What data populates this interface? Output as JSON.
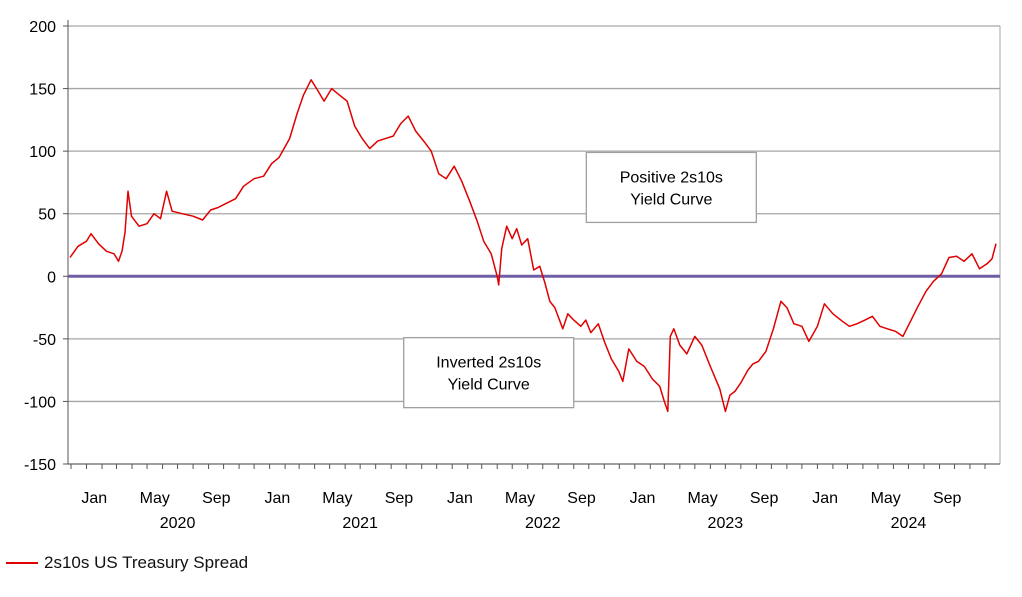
{
  "chart_data": {
    "type": "line",
    "title": "",
    "xlabel": "",
    "ylabel": "",
    "ylim": [
      -150,
      200
    ],
    "yticks": [
      200,
      150,
      100,
      50,
      0,
      -50,
      -100,
      -150
    ],
    "xlim": [
      "2019-11-25",
      "2024-12-31"
    ],
    "month_ticks": [
      {
        "label": "Jan",
        "date": "2020-01-01"
      },
      {
        "label": "May",
        "date": "2020-05-01"
      },
      {
        "label": "Sep",
        "date": "2020-09-01"
      },
      {
        "label": "Jan",
        "date": "2021-01-01"
      },
      {
        "label": "May",
        "date": "2021-05-01"
      },
      {
        "label": "Sep",
        "date": "2021-09-01"
      },
      {
        "label": "Jan",
        "date": "2022-01-01"
      },
      {
        "label": "May",
        "date": "2022-05-01"
      },
      {
        "label": "Sep",
        "date": "2022-09-01"
      },
      {
        "label": "Jan",
        "date": "2023-01-01"
      },
      {
        "label": "May",
        "date": "2023-05-01"
      },
      {
        "label": "Sep",
        "date": "2023-09-01"
      },
      {
        "label": "Jan",
        "date": "2024-01-01"
      },
      {
        "label": "May",
        "date": "2024-05-01"
      },
      {
        "label": "Sep",
        "date": "2024-09-01"
      }
    ],
    "year_labels": [
      {
        "label": "2020",
        "date": "2020-07-01"
      },
      {
        "label": "2021",
        "date": "2021-07-01"
      },
      {
        "label": "2022",
        "date": "2022-07-01"
      },
      {
        "label": "2023",
        "date": "2023-07-01"
      },
      {
        "label": "2024",
        "date": "2024-07-01"
      }
    ],
    "grid": true,
    "legend_position": "bottom-left",
    "series": [
      {
        "name": "2s10s US Treasury Spread",
        "color": "#e00000",
        "points": [
          [
            "2019-11-29",
            15
          ],
          [
            "2019-12-15",
            24
          ],
          [
            "2020-01-01",
            28
          ],
          [
            "2020-01-10",
            34
          ],
          [
            "2020-01-25",
            26
          ],
          [
            "2020-02-10",
            20
          ],
          [
            "2020-02-25",
            18
          ],
          [
            "2020-03-05",
            12
          ],
          [
            "2020-03-12",
            20
          ],
          [
            "2020-03-18",
            35
          ],
          [
            "2020-03-24",
            68
          ],
          [
            "2020-03-31",
            48
          ],
          [
            "2020-04-15",
            40
          ],
          [
            "2020-05-01",
            42
          ],
          [
            "2020-05-15",
            50
          ],
          [
            "2020-05-28",
            46
          ],
          [
            "2020-06-09",
            68
          ],
          [
            "2020-06-20",
            52
          ],
          [
            "2020-07-10",
            50
          ],
          [
            "2020-08-01",
            48
          ],
          [
            "2020-08-20",
            45
          ],
          [
            "2020-09-05",
            53
          ],
          [
            "2020-09-20",
            55
          ],
          [
            "2020-10-05",
            58
          ],
          [
            "2020-10-25",
            62
          ],
          [
            "2020-11-10",
            72
          ],
          [
            "2020-12-01",
            78
          ],
          [
            "2020-12-20",
            80
          ],
          [
            "2021-01-05",
            90
          ],
          [
            "2021-01-20",
            95
          ],
          [
            "2021-02-10",
            110
          ],
          [
            "2021-02-25",
            130
          ],
          [
            "2021-03-10",
            145
          ],
          [
            "2021-03-25",
            157
          ],
          [
            "2021-04-05",
            150
          ],
          [
            "2021-04-20",
            140
          ],
          [
            "2021-05-05",
            150
          ],
          [
            "2021-05-20",
            145
          ],
          [
            "2021-06-05",
            140
          ],
          [
            "2021-06-20",
            120
          ],
          [
            "2021-07-05",
            110
          ],
          [
            "2021-07-20",
            102
          ],
          [
            "2021-08-05",
            108
          ],
          [
            "2021-08-20",
            110
          ],
          [
            "2021-09-05",
            112
          ],
          [
            "2021-09-20",
            122
          ],
          [
            "2021-10-05",
            128
          ],
          [
            "2021-10-20",
            116
          ],
          [
            "2021-11-05",
            108
          ],
          [
            "2021-11-20",
            100
          ],
          [
            "2021-12-05",
            82
          ],
          [
            "2021-12-20",
            78
          ],
          [
            "2022-01-05",
            88
          ],
          [
            "2022-01-20",
            76
          ],
          [
            "2022-02-05",
            60
          ],
          [
            "2022-02-20",
            44
          ],
          [
            "2022-03-05",
            28
          ],
          [
            "2022-03-20",
            18
          ],
          [
            "2022-04-01",
            0
          ],
          [
            "2022-04-04",
            -7
          ],
          [
            "2022-04-10",
            22
          ],
          [
            "2022-04-20",
            40
          ],
          [
            "2022-05-01",
            30
          ],
          [
            "2022-05-10",
            38
          ],
          [
            "2022-05-20",
            25
          ],
          [
            "2022-06-01",
            30
          ],
          [
            "2022-06-13",
            5
          ],
          [
            "2022-06-25",
            8
          ],
          [
            "2022-07-05",
            -5
          ],
          [
            "2022-07-15",
            -20
          ],
          [
            "2022-07-25",
            -25
          ],
          [
            "2022-08-10",
            -42
          ],
          [
            "2022-08-20",
            -30
          ],
          [
            "2022-09-01",
            -35
          ],
          [
            "2022-09-15",
            -40
          ],
          [
            "2022-09-25",
            -35
          ],
          [
            "2022-10-05",
            -45
          ],
          [
            "2022-10-20",
            -38
          ],
          [
            "2022-11-01",
            -52
          ],
          [
            "2022-11-15",
            -66
          ],
          [
            "2022-11-30",
            -76
          ],
          [
            "2022-12-08",
            -84
          ],
          [
            "2022-12-20",
            -58
          ],
          [
            "2023-01-05",
            -68
          ],
          [
            "2023-01-20",
            -72
          ],
          [
            "2023-02-05",
            -82
          ],
          [
            "2023-02-20",
            -88
          ],
          [
            "2023-03-01",
            -100
          ],
          [
            "2023-03-08",
            -108
          ],
          [
            "2023-03-13",
            -48
          ],
          [
            "2023-03-20",
            -42
          ],
          [
            "2023-04-01",
            -55
          ],
          [
            "2023-04-15",
            -62
          ],
          [
            "2023-05-01",
            -48
          ],
          [
            "2023-05-15",
            -55
          ],
          [
            "2023-06-01",
            -72
          ],
          [
            "2023-06-20",
            -90
          ],
          [
            "2023-07-01",
            -108
          ],
          [
            "2023-07-10",
            -95
          ],
          [
            "2023-07-20",
            -92
          ],
          [
            "2023-08-01",
            -85
          ],
          [
            "2023-08-15",
            -75
          ],
          [
            "2023-08-25",
            -70
          ],
          [
            "2023-09-05",
            -68
          ],
          [
            "2023-09-20",
            -60
          ],
          [
            "2023-10-05",
            -42
          ],
          [
            "2023-10-20",
            -20
          ],
          [
            "2023-11-01",
            -25
          ],
          [
            "2023-11-15",
            -38
          ],
          [
            "2023-12-01",
            -40
          ],
          [
            "2023-12-15",
            -52
          ],
          [
            "2024-01-01",
            -40
          ],
          [
            "2024-01-15",
            -22
          ],
          [
            "2024-02-01",
            -30
          ],
          [
            "2024-02-20",
            -36
          ],
          [
            "2024-03-05",
            -40
          ],
          [
            "2024-03-20",
            -38
          ],
          [
            "2024-04-05",
            -35
          ],
          [
            "2024-04-20",
            -32
          ],
          [
            "2024-05-05",
            -40
          ],
          [
            "2024-05-20",
            -42
          ],
          [
            "2024-06-05",
            -44
          ],
          [
            "2024-06-20",
            -48
          ],
          [
            "2024-07-05",
            -36
          ],
          [
            "2024-07-20",
            -24
          ],
          [
            "2024-08-05",
            -12
          ],
          [
            "2024-08-20",
            -4
          ],
          [
            "2024-09-05",
            2
          ],
          [
            "2024-09-20",
            15
          ],
          [
            "2024-10-05",
            16
          ],
          [
            "2024-10-20",
            12
          ],
          [
            "2024-11-05",
            18
          ],
          [
            "2024-11-20",
            6
          ],
          [
            "2024-12-05",
            10
          ],
          [
            "2024-12-15",
            14
          ],
          [
            "2024-12-23",
            26
          ]
        ]
      },
      {
        "name": "",
        "color": "#6f5da6",
        "points": [
          [
            "2019-11-25",
            0
          ],
          [
            "2024-12-31",
            0
          ]
        ]
      }
    ],
    "annotations": [
      {
        "lines": [
          "Positive 2s10s",
          "Yield Curve"
        ],
        "date": "2023-03-15",
        "y": 71
      },
      {
        "lines": [
          "Inverted 2s10s",
          "Yield Curve"
        ],
        "date": "2022-03-15",
        "y": -77
      }
    ]
  }
}
